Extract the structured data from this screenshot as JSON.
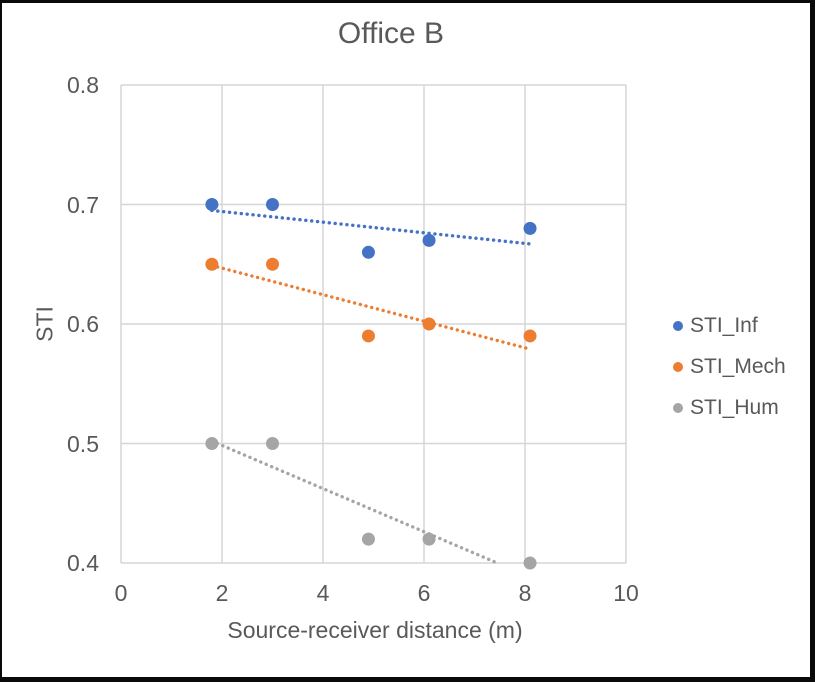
{
  "chart_data": {
    "type": "scatter",
    "title": "Office B",
    "xlabel": "Source-receiver distance (m)",
    "ylabel": "STI",
    "xlim": [
      0,
      10
    ],
    "ylim": [
      0.4,
      0.8
    ],
    "xticks": [
      "0",
      "2",
      "4",
      "6",
      "8",
      "10"
    ],
    "yticks": [
      "0.8",
      "0.7",
      "0.6",
      "0.5",
      "0.4"
    ],
    "grid": true,
    "legend_position": "right",
    "x": [
      1.8,
      3,
      4.9,
      6.1,
      8.1
    ],
    "series": [
      {
        "name": "STI_Inf",
        "color": "#4472C4",
        "values": [
          0.7,
          0.7,
          0.66,
          0.67,
          0.68
        ],
        "trendline": {
          "style": "dotted",
          "x1": 1.8,
          "y1": 0.695,
          "x2": 8.1,
          "y2": 0.667
        }
      },
      {
        "name": "STI_Mech",
        "color": "#ED7D31",
        "values": [
          0.65,
          0.65,
          0.59,
          0.6,
          0.59
        ],
        "trendline": {
          "style": "dotted",
          "x1": 1.8,
          "y1": 0.649,
          "x2": 8.1,
          "y2": 0.579
        }
      },
      {
        "name": "STI_Hum",
        "color": "#A5A5A5",
        "values": [
          0.5,
          0.5,
          0.42,
          0.42,
          0.4
        ],
        "trendline": {
          "style": "dotted",
          "x1": 1.8,
          "y1": 0.502,
          "x2": 7.45,
          "y2": 0.4
        }
      }
    ],
    "colors": {
      "text": "#595959",
      "grid": "#D6D6D6",
      "background": "#FFFFFF",
      "frame_border": "#0A0A0A"
    }
  }
}
